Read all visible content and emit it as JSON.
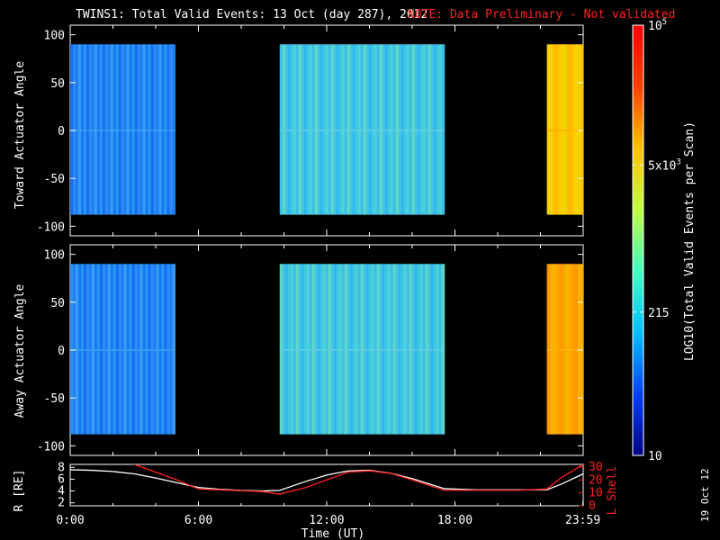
{
  "header": {
    "title": "TWINS1: Total Valid Events: 13 Oct (day 287), 2012",
    "note": "NOTE: Data Preliminary - Not validated"
  },
  "colorbar": {
    "label": "LOG10(Total Valid Events per Scan)",
    "ticks": [
      "10",
      "215",
      "5x10^3",
      "10^5"
    ],
    "tick_values": [
      10,
      215,
      5000,
      100000
    ],
    "colors": [
      "#000080",
      "#0040ff",
      "#00c0ff",
      "#40ffc0",
      "#c0ff40",
      "#ffc000",
      "#ff4000",
      "#ff0000"
    ]
  },
  "footer": {
    "date_stamp": "19 Oct 12"
  },
  "chart_data": [
    {
      "type": "heatmap",
      "title": "",
      "ylabel": "Toward Actuator Angle",
      "ylim": [
        -110,
        110
      ],
      "yticks": [
        "100",
        "50",
        "0",
        "-50",
        "-100"
      ],
      "xlim": [
        0,
        24
      ],
      "data_blocks": [
        {
          "start_hour": 0.0,
          "end_hour": 4.9,
          "level": "blue"
        },
        {
          "start_hour": 9.8,
          "end_hour": 17.5,
          "level": "cyan"
        },
        {
          "start_hour": 22.3,
          "end_hour": 24.0,
          "level": "yellow-orange"
        }
      ],
      "angle_range": [
        -88,
        90
      ]
    },
    {
      "type": "heatmap",
      "title": "",
      "ylabel": "Away Actuator Angle",
      "ylim": [
        -110,
        110
      ],
      "yticks": [
        "100",
        "50",
        "0",
        "-50",
        "-100"
      ],
      "xlim": [
        0,
        24
      ],
      "data_blocks": [
        {
          "start_hour": 0.0,
          "end_hour": 4.9,
          "level": "blue"
        },
        {
          "start_hour": 9.8,
          "end_hour": 17.5,
          "level": "cyan"
        },
        {
          "start_hour": 22.3,
          "end_hour": 24.0,
          "level": "orange"
        }
      ],
      "angle_range": [
        -88,
        90
      ]
    },
    {
      "type": "line",
      "xlabel": "Time (UT)",
      "xticks": [
        "0:00",
        "6:00",
        "12:00",
        "18:00",
        "23:59"
      ],
      "xtick_hours": [
        0,
        6,
        12,
        18,
        23.983
      ],
      "ylabel_left": "R [RE]",
      "yticks_left": [
        "8",
        "6",
        "4",
        "2"
      ],
      "ylim_left": [
        1.5,
        8.5
      ],
      "ylabel_right": "L Shell",
      "yticks_right": [
        "30",
        "20",
        "10",
        "0"
      ],
      "ylim_right": [
        0,
        32
      ],
      "series": [
        {
          "name": "R",
          "color": "#ffffff",
          "x": [
            0,
            1,
            2,
            3,
            4,
            5,
            6,
            7,
            8,
            9,
            9.8,
            11,
            12,
            13,
            14,
            15,
            16,
            17.5,
            19,
            21,
            22.3,
            23,
            24
          ],
          "y": [
            7.6,
            7.5,
            7.3,
            6.9,
            6.2,
            5.4,
            4.6,
            4.3,
            4.1,
            4.0,
            4.1,
            5.6,
            6.7,
            7.4,
            7.5,
            7.0,
            6.1,
            4.4,
            4.2,
            4.2,
            4.2,
            5.2,
            6.9
          ]
        },
        {
          "name": "L Shell",
          "color": "#ff2020",
          "x": [
            3.0,
            4.0,
            5.0,
            6.0,
            7.5,
            9.0,
            9.8,
            11.0,
            12.0,
            13.0,
            14.0,
            15.0,
            16.0,
            17.5,
            19.0,
            21.0,
            22.3,
            23.0,
            24.0
          ],
          "y": [
            32,
            26,
            20,
            13,
            12,
            11,
            9,
            14,
            20,
            26,
            27,
            25,
            20,
            12,
            12,
            12,
            13,
            22,
            32
          ]
        }
      ]
    }
  ]
}
